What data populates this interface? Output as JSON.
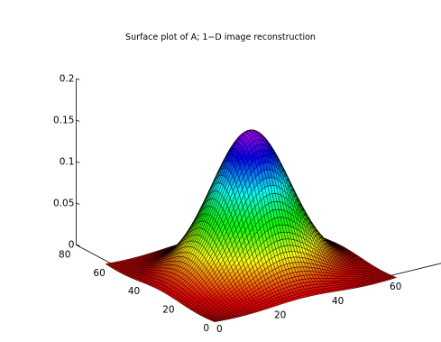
{
  "chart_data": {
    "type": "surface",
    "title": "Surface plot of A;  1−D image reconstruction",
    "colormap": "hsv",
    "grid": false,
    "x": {
      "range": [
        0,
        80
      ],
      "ticks": [
        "0",
        "20",
        "40",
        "60",
        "80"
      ],
      "tick_values": [
        0,
        20,
        40,
        60,
        80
      ]
    },
    "y": {
      "range": [
        0,
        80
      ],
      "ticks": [
        "0",
        "20",
        "40",
        "60",
        "80"
      ],
      "tick_values": [
        0,
        20,
        40,
        60,
        80
      ]
    },
    "z": {
      "range": [
        0,
        0.2
      ],
      "ticks": [
        "0",
        "0.05",
        "0.1",
        "0.15",
        "0.2"
      ],
      "tick_values": [
        0,
        0.05,
        0.1,
        0.15,
        0.2
      ]
    },
    "surface": {
      "mesh_points_per_side": 64,
      "x_span": [
        0,
        63
      ],
      "y_span": [
        0,
        63
      ],
      "shape": "peaked bump centered on the grid, falling toward the edges, slightly negative ripple near the boundary",
      "peak_value": 0.165,
      "min_value": -0.006
    }
  }
}
